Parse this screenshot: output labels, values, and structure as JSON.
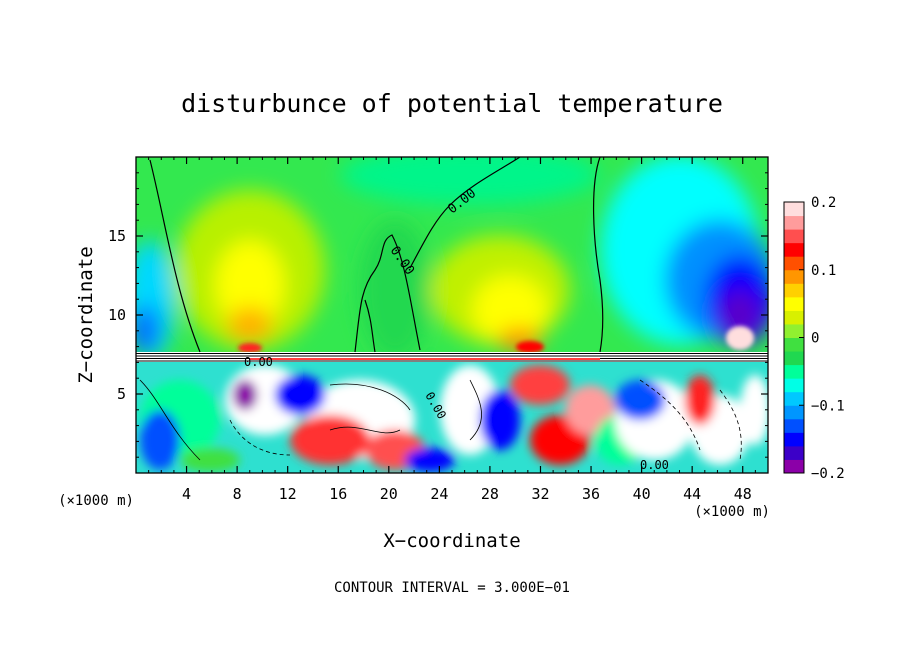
{
  "chart_data": {
    "type": "heatmap",
    "title": "disturbunce of potential temperature",
    "xlabel": "X−coordinate",
    "ylabel": "Z−coordinate",
    "x_unit_left": "(×1000 m)",
    "x_unit_right": "(×1000 m)",
    "x_range": [
      0,
      50
    ],
    "y_range": [
      0,
      20
    ],
    "x_ticks": [
      4,
      8,
      12,
      16,
      20,
      24,
      28,
      32,
      36,
      40,
      44,
      48
    ],
    "y_ticks": [
      5,
      10,
      15
    ],
    "x_tick_labels": [
      "4",
      "8",
      "12",
      "16",
      "20",
      "24",
      "28",
      "32",
      "36",
      "40",
      "44",
      "48"
    ],
    "y_tick_labels": [
      "5",
      "10",
      "15"
    ],
    "colorbar": {
      "range": [
        -0.2,
        0.2
      ],
      "ticks": [
        0.2,
        0.1,
        0,
        -0.1,
        -0.2
      ],
      "tick_labels": [
        "0.2",
        "0.1",
        "0",
        "−0.1",
        "−0.2"
      ],
      "colors": [
        "#8b00a8",
        "#3c00c8",
        "#0000ff",
        "#0050ff",
        "#0096ff",
        "#00c8ff",
        "#00ffe6",
        "#00ff9a",
        "#20d850",
        "#40e040",
        "#90f030",
        "#d8f000",
        "#ffff00",
        "#ffd000",
        "#ff9600",
        "#ff5000",
        "#ff0000",
        "#ff4f4f",
        "#ff9c9c",
        "#ffdede"
      ]
    },
    "contour_labels": [
      "0.00",
      "0.00",
      "0.00",
      "0.00",
      "0.00"
    ],
    "footer": "CONTOUR INTERVAL = 3.000E−01",
    "grid": false
  }
}
